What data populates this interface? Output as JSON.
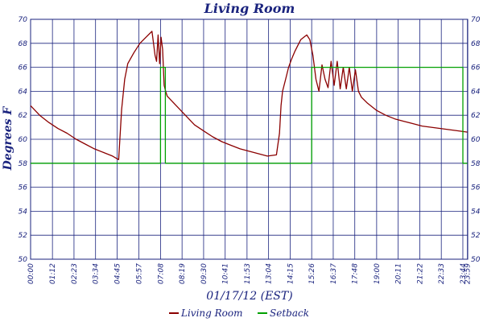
{
  "chart_data": {
    "type": "line",
    "title": "Living Room",
    "xlabel": "01/17/12 (EST)",
    "ylabel": "Degrees F",
    "ylim": [
      50,
      70
    ],
    "y_ticks": [
      50,
      52,
      54,
      56,
      58,
      60,
      62,
      64,
      66,
      68,
      70
    ],
    "x_range_hours": [
      0,
      24
    ],
    "x_tick_labels": [
      "00:00",
      "01:12",
      "02:23",
      "03:34",
      "04:45",
      "05:57",
      "07:08",
      "08:19",
      "09:30",
      "10:41",
      "11:53",
      "13:04",
      "14:15",
      "15:26",
      "16:37",
      "17:48",
      "19:00",
      "20:11",
      "21:22",
      "22:33",
      "23:44",
      "23:59"
    ],
    "legend_position": "bottom-center",
    "grid": true,
    "colors": {
      "axis": "#1a237e",
      "grid": "#1a237e",
      "living_room": "#8b0000",
      "setback": "#00a000"
    },
    "series": [
      {
        "name": "Living Room",
        "x": [
          "00:00",
          "00:30",
          "01:00",
          "01:30",
          "02:00",
          "02:30",
          "03:00",
          "03:30",
          "04:00",
          "04:30",
          "04:50",
          "05:00",
          "05:10",
          "05:20",
          "05:40",
          "06:00",
          "06:20",
          "06:40",
          "06:50",
          "06:55",
          "07:00",
          "07:05",
          "07:10",
          "07:15",
          "07:20",
          "07:25",
          "07:30",
          "07:45",
          "08:00",
          "08:30",
          "09:00",
          "09:30",
          "10:00",
          "10:30",
          "11:00",
          "11:30",
          "12:00",
          "12:30",
          "13:00",
          "13:30",
          "13:40",
          "13:45",
          "13:50",
          "14:00",
          "14:10",
          "14:20",
          "14:30",
          "14:40",
          "14:50",
          "15:00",
          "15:10",
          "15:20",
          "15:30",
          "15:40",
          "15:50",
          "16:00",
          "16:10",
          "16:20",
          "16:30",
          "16:40",
          "16:50",
          "17:00",
          "17:10",
          "17:20",
          "17:30",
          "17:40",
          "17:50",
          "18:00",
          "18:10",
          "18:30",
          "19:00",
          "19:30",
          "20:00",
          "20:30",
          "21:00",
          "21:30",
          "22:00",
          "22:30",
          "23:00",
          "23:30",
          "23:59"
        ],
        "values": [
          62.8,
          62.0,
          61.4,
          60.9,
          60.5,
          60.0,
          59.6,
          59.2,
          58.9,
          58.6,
          58.3,
          62.5,
          65.0,
          66.3,
          67.2,
          68.0,
          68.5,
          69.0,
          67.0,
          66.5,
          68.7,
          66.3,
          68.5,
          67.5,
          64.5,
          64.0,
          63.6,
          63.2,
          62.8,
          62.0,
          61.2,
          60.7,
          60.2,
          59.8,
          59.5,
          59.2,
          59.0,
          58.8,
          58.6,
          58.7,
          60.5,
          62.8,
          64.0,
          65.0,
          66.0,
          66.7,
          67.3,
          67.8,
          68.3,
          68.5,
          68.7,
          68.3,
          67.0,
          65.0,
          64.0,
          66.2,
          65.0,
          64.3,
          66.5,
          64.5,
          66.5,
          64.2,
          66.0,
          64.2,
          66.0,
          64.0,
          65.8,
          64.0,
          63.5,
          63.0,
          62.4,
          62.0,
          61.7,
          61.5,
          61.3,
          61.1,
          61.0,
          60.9,
          60.8,
          60.7,
          60.6
        ]
      },
      {
        "name": "Setback",
        "x": [
          "00:00",
          "07:08",
          "07:08",
          "07:24",
          "07:24",
          "15:26",
          "15:26",
          "23:44",
          "23:44",
          "23:59"
        ],
        "values": [
          58,
          58,
          66,
          66,
          58,
          58,
          66,
          66,
          58,
          58
        ]
      }
    ]
  }
}
